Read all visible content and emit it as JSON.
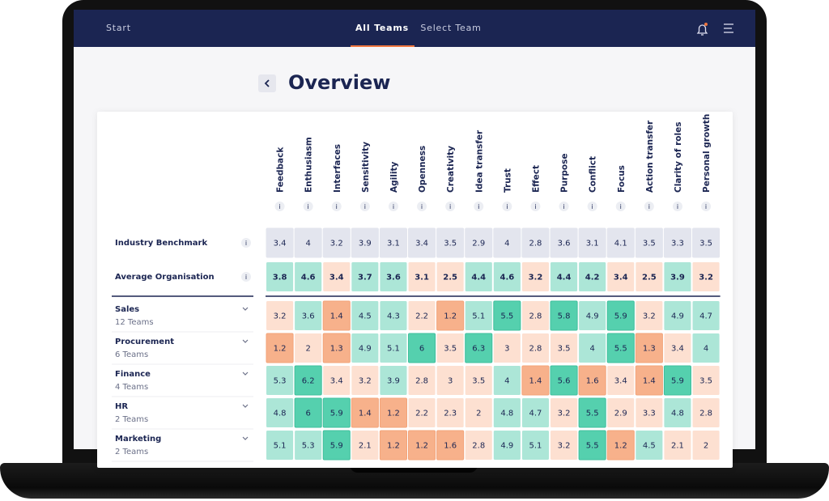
{
  "nav": {
    "start": "Start",
    "tabs": [
      "All Teams",
      "Select Team"
    ]
  },
  "page": {
    "title": "Overview"
  },
  "table": {
    "info": "i",
    "columns": [
      "Feedback",
      "Enthusiasm",
      "Interfaces",
      "Sensitivity",
      "Agility",
      "Openness",
      "Creativity",
      "Idea transfer",
      "Trust",
      "Effect",
      "Purpose",
      "Conflict",
      "Focus",
      "Action transfer",
      "Clarity of roles",
      "Personal growth"
    ],
    "rows": [
      {
        "label": "Industry Benchmark",
        "values": [
          3.4,
          4,
          3.2,
          3.9,
          3.1,
          3.4,
          3.5,
          2.9,
          4,
          2.8,
          3.6,
          3.1,
          4.1,
          3.5,
          3.3,
          3.5
        ]
      },
      {
        "label": "Average Organisation",
        "values": [
          3.8,
          4.6,
          3.4,
          3.7,
          3.6,
          3.1,
          2.5,
          4.4,
          4.6,
          3.2,
          4.4,
          4.2,
          3.4,
          2.5,
          3.9,
          3.2
        ]
      },
      {
        "label": "Sales",
        "sublabel": "12 Teams",
        "values": [
          3.2,
          3.6,
          1.4,
          4.5,
          4.3,
          2.2,
          1.2,
          5.1,
          5.5,
          2.8,
          5.8,
          4.9,
          5.9,
          3.2,
          4.9,
          4.7
        ]
      },
      {
        "label": "Procurement",
        "sublabel": "6 Teams",
        "values": [
          1.2,
          2,
          1.3,
          4.9,
          5.1,
          6,
          3.5,
          6.3,
          3,
          2.8,
          3.5,
          4,
          5.5,
          1.3,
          3.4,
          4
        ]
      },
      {
        "label": "Finance",
        "sublabel": "4 Teams",
        "values": [
          5.3,
          6.2,
          3.4,
          3.2,
          3.9,
          2.8,
          3,
          3.5,
          4,
          1.4,
          5.6,
          1.6,
          3.4,
          1.4,
          5.9,
          3.5
        ]
      },
      {
        "label": "HR",
        "sublabel": "2 Teams",
        "values": [
          4.8,
          6,
          5.9,
          1.4,
          1.2,
          2.2,
          2.3,
          2,
          4.8,
          4.7,
          3.2,
          5.5,
          2.9,
          3.3,
          4.8,
          2.8
        ]
      },
      {
        "label": "Marketing",
        "sublabel": "2 Teams",
        "values": [
          5.1,
          5.3,
          5.9,
          2.1,
          1.2,
          1.2,
          1.6,
          2.8,
          4.9,
          5.1,
          3.2,
          5.5,
          1.2,
          4.5,
          2.1,
          2
        ]
      }
    ]
  }
}
